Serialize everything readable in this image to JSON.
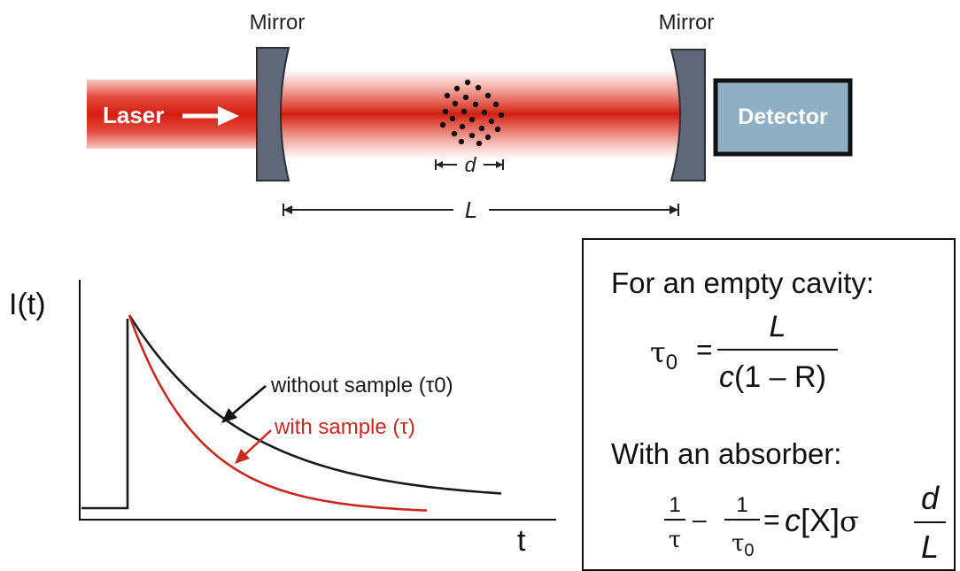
{
  "setup": {
    "mirror_left_label": "Mirror",
    "mirror_right_label": "Mirror",
    "laser_label": "Laser",
    "detector_label": "Detector",
    "sample_length_label": "d",
    "cavity_length_label": "L"
  },
  "plot": {
    "ylabel": "I(t)",
    "xlabel": "t",
    "series": [
      {
        "name": "without sample (τ0)",
        "color": "#1a1a1a"
      },
      {
        "name": "with sample (τ)",
        "color": "#c8281e"
      }
    ]
  },
  "equations": {
    "empty_heading": "For an empty cavity:",
    "tau0": "τ",
    "tau0_sub": "0",
    "equals": "=",
    "numerator_L": "L",
    "denominator_c": "c",
    "denominator_rest": "(1 – R)",
    "absorber_heading": "With an absorber:",
    "one": "1",
    "tau": "τ",
    "minus": "–",
    "one2": "1",
    "tau0b": "τ",
    "tau0b_sub": "0",
    "equals2": "=",
    "c2": "c",
    "X": "[X]",
    "sigma": "σ",
    "frac_d": "d",
    "frac_L": "L"
  },
  "colors": {
    "laser_red": "#d7261e",
    "mirror_fill": "#5e6878",
    "detector_fill": "#8fb0c4",
    "sample_line": "#c8281e",
    "reference_line": "#1a1a1a"
  }
}
